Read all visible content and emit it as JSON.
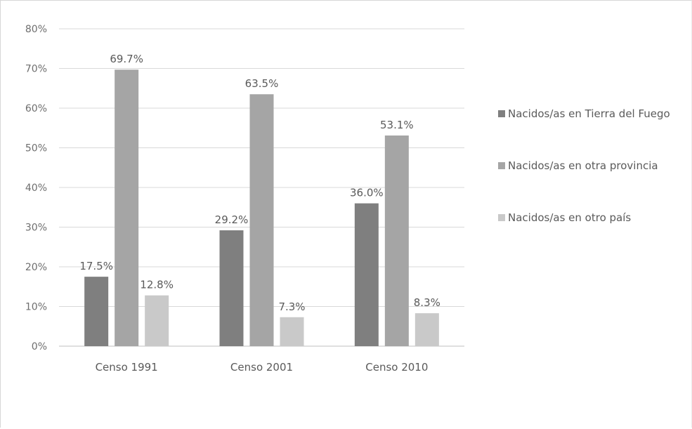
{
  "chart_data": {
    "type": "bar",
    "categories": [
      "Censo 1991",
      "Censo 2001",
      "Censo 2010"
    ],
    "series": [
      {
        "name": "Nacidos/as en Tierra del Fuego",
        "values": [
          17.5,
          29.2,
          36.0
        ],
        "labels": [
          "17.5%",
          "29.2%",
          "36.0%"
        ],
        "color": "#7f7f7f"
      },
      {
        "name": "Nacidos/as en otra provincia",
        "values": [
          69.7,
          63.5,
          53.1
        ],
        "labels": [
          "69.7%",
          "63.5%",
          "53.1%"
        ],
        "color": "#a5a5a5"
      },
      {
        "name": "Nacidos/as en otro país",
        "values": [
          12.8,
          7.3,
          8.3
        ],
        "labels": [
          "12.8%",
          "7.3%",
          "8.3%"
        ],
        "color": "#c9c9c9"
      }
    ],
    "yticks": [
      {
        "value": 0,
        "label": "0%"
      },
      {
        "value": 10,
        "label": "10%"
      },
      {
        "value": 20,
        "label": "20%"
      },
      {
        "value": 30,
        "label": "30%"
      },
      {
        "value": 40,
        "label": "40%"
      },
      {
        "value": 50,
        "label": "50%"
      },
      {
        "value": 60,
        "label": "60%"
      },
      {
        "value": 70,
        "label": "70%"
      },
      {
        "value": 80,
        "label": "80%"
      }
    ],
    "ylim": [
      0,
      80
    ],
    "title": "",
    "xlabel": "",
    "ylabel": "",
    "grid": true,
    "legend_position": "right",
    "gridline_color": "#d9d9d9",
    "axis_color": "#bfbfbf"
  }
}
